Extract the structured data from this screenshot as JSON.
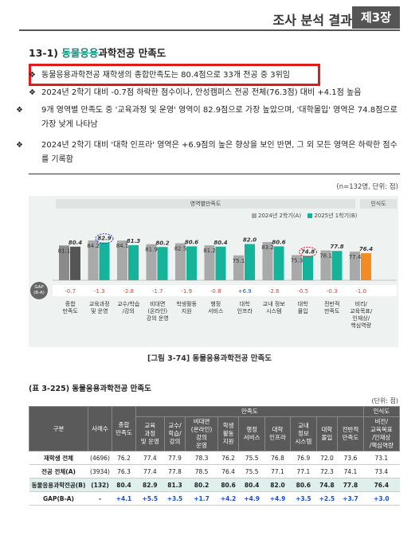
{
  "header": {
    "title": "조사 분석 결과",
    "chapter": "제3장"
  },
  "section": {
    "number": "13-1)",
    "title_highlight": "동물응용",
    "title_rest": "과학전공 만족도"
  },
  "bullets": [
    "동물응용과학전공 재학생의 종합만족도는 80.4점으로 33개 전공 중 3위임",
    "2024년 2학기 대비 -0.7점 하락한 점수이나, 안성캠퍼스 전공 전체(76.3점) 대비 +4.1점 높음",
    "9개 영역별 만족도 중 '교육과정 및 운영' 영역이 82.9점으로 가장 높았으며, '대학몰입' 영역은 74.8점으로 가장 낮게 나타남",
    "2024년 2학기 대비 '대학 인프라' 영역은 +6.9점의 높은 향상을 보인 반면, 그 외 모든 영역은 하락한 점수를 기록함"
  ],
  "bullet_marker": "❖",
  "chart_units": "(n=132명, 단위: 점)",
  "chart_data": {
    "type": "bar",
    "band_label": "영역별만족도",
    "band_label_right": "인식도",
    "categories": [
      "종합\n만족도",
      "교육과정\n및 운영",
      "교수/학습\n/강의",
      "비대면\n(온라인)\n강의 운영",
      "학생활동\n지원",
      "행정\n서비스",
      "대학\n인프라",
      "교내 정보\n시스템",
      "대학\n몰입",
      "전반적\n만족도",
      "비리/\n교육목표/\n인재상/\n핵심역량"
    ],
    "series": [
      {
        "name": "2024년 2학기(A)",
        "color": "#a9a9a9",
        "values": [
          81.1,
          84.2,
          84.1,
          81.9,
          82.5,
          81.2,
          75.1,
          83.2,
          75.3,
          78.1,
          77.4
        ]
      },
      {
        "name": "2025년 1학기(B)",
        "color": "#14b39a",
        "values": [
          80.4,
          82.9,
          81.3,
          80.2,
          80.6,
          80.4,
          82.0,
          80.6,
          74.8,
          77.8,
          76.4
        ]
      }
    ],
    "gap_label": "GAP\n(B-A)",
    "gaps": [
      "-0.7",
      "-1.3",
      "-2.8",
      "-1.7",
      "-1.9",
      "-0.8",
      "+6.9",
      "-2.6",
      "-0.5",
      "-0.3",
      "-1.0"
    ],
    "circled": [
      1,
      8
    ],
    "ylim": [
      60,
      90
    ],
    "colors": {
      "first_bar": "#555555",
      "last_bar": "#f08c23",
      "neg": "#e0423a",
      "pos": "#1a4fd1"
    }
  },
  "figure_caption": "[그림 3-74] 동물응용과학전공 만족도",
  "table": {
    "title": "(표 3-225) 동물응용과학전공 만족도",
    "unit": "(단위: 점)",
    "group_header": "만족도",
    "group_header_right": "인식도",
    "col_gubun": "구분",
    "col_n": "사례수",
    "col_total": "종합\n만족도",
    "cols": [
      "교육\n과정\n및 운영",
      "교수/\n학습/\n강의",
      "비대면\n(온라인)\n강의\n운영",
      "학생\n활동\n지원",
      "행정\n서비스",
      "대학\n인프라",
      "교내\n정보\n시스템",
      "대학\n몰입",
      "전반적\n만족도"
    ],
    "col_last": "비전/\n교육목표\n/인재상\n/핵심역량",
    "rows": [
      {
        "label": "재학생 전체",
        "n": "(4696)",
        "vals": [
          "76.2",
          "77.4",
          "77.9",
          "78.3",
          "76.2",
          "75.5",
          "76.8",
          "76.9",
          "72.0",
          "73.6",
          "73.1"
        ]
      },
      {
        "label": "전공 전체(A)",
        "n": "(3934)",
        "vals": [
          "76.3",
          "77.4",
          "77.8",
          "78.5",
          "76.4",
          "75.5",
          "77.1",
          "77.1",
          "72.3",
          "74.1",
          "73.4"
        ]
      },
      {
        "label": "동물응용과학전공(B)",
        "n": "(132)",
        "vals": [
          "80.4",
          "82.9",
          "81.3",
          "80.2",
          "80.6",
          "80.4",
          "82.0",
          "80.6",
          "74.8",
          "77.8",
          "76.4"
        ]
      },
      {
        "label": "GAP(B-A)",
        "n": "-",
        "vals": [
          "+4.1",
          "+5.5",
          "+3.5",
          "+1.7",
          "+4.2",
          "+4.9",
          "+4.9",
          "+3.5",
          "+2.5",
          "+3.7",
          "+3.0"
        ]
      }
    ]
  }
}
